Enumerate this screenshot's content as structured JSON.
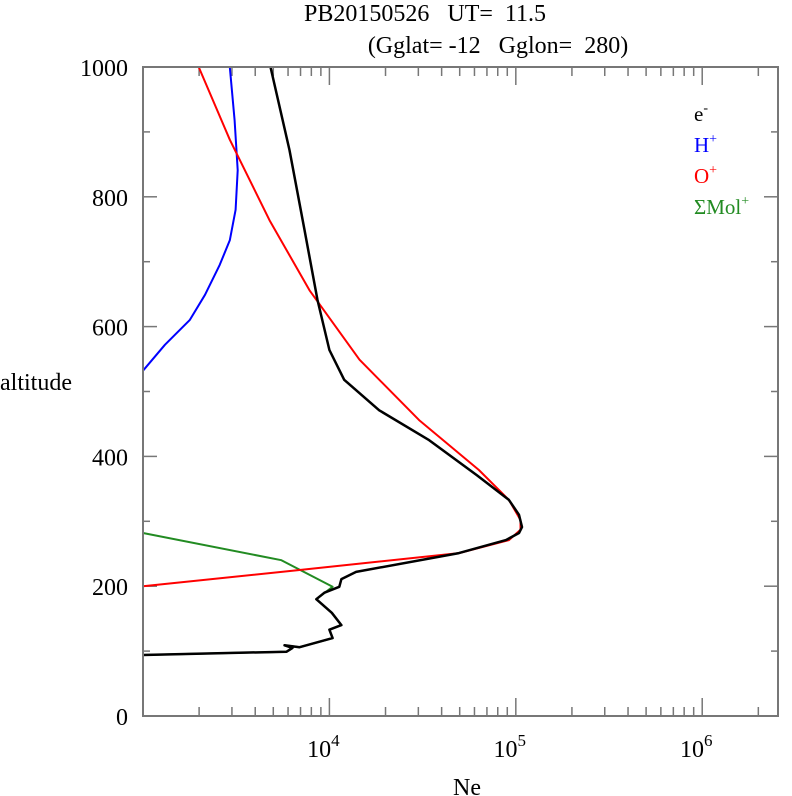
{
  "chart_data": {
    "type": "line",
    "title_line1": "PB20150526   UT=  11.5",
    "title_line2": "(Gglat= -12   Gglon=  280)",
    "xlabel": "Ne",
    "ylabel": "altitude",
    "xscale": "log",
    "xlim": [
      1000,
      2550000
    ],
    "ylim": [
      0,
      1000
    ],
    "x_ticks": [
      {
        "value": 10000,
        "base": "10",
        "exp": "4"
      },
      {
        "value": 100000,
        "base": "10",
        "exp": "5"
      },
      {
        "value": 1000000,
        "base": "10",
        "exp": "6"
      }
    ],
    "y_ticks": [
      0,
      200,
      400,
      600,
      800,
      1000
    ],
    "legend_position": "top-right",
    "series": [
      {
        "name": "e",
        "sup": "-",
        "color": "#000000",
        "points": [
          [
            4830,
            1000
          ],
          [
            6110,
            872
          ],
          [
            7350,
            749
          ],
          [
            8630,
            641
          ],
          [
            10000,
            564
          ],
          [
            12000,
            518
          ],
          [
            18500,
            471
          ],
          [
            34300,
            425
          ],
          [
            61800,
            371
          ],
          [
            91800,
            333
          ],
          [
            104000,
            310
          ],
          [
            108000,
            291
          ],
          [
            104000,
            282
          ],
          [
            88500,
            271
          ],
          [
            49500,
            251
          ],
          [
            13900,
            222
          ],
          [
            11600,
            211
          ],
          [
            11300,
            199
          ],
          [
            9400,
            190
          ],
          [
            8510,
            180
          ],
          [
            10300,
            159
          ],
          [
            11600,
            140
          ],
          [
            10000,
            133
          ],
          [
            10400,
            120
          ],
          [
            6920,
            106
          ],
          [
            5740,
            109
          ],
          [
            6340,
            105
          ],
          [
            5890,
            99
          ],
          [
            1000,
            94
          ]
        ]
      },
      {
        "name": "H",
        "sup": "+",
        "color": "#0000ff",
        "points": [
          [
            2920,
            1000
          ],
          [
            3100,
            918
          ],
          [
            3220,
            841
          ],
          [
            3140,
            780
          ],
          [
            2920,
            733
          ],
          [
            2580,
            695
          ],
          [
            2150,
            649
          ],
          [
            1780,
            610
          ],
          [
            1310,
            572
          ],
          [
            1000,
            532
          ]
        ]
      },
      {
        "name": "O",
        "sup": "+",
        "color": "#ff0000",
        "points": [
          [
            1990,
            1000
          ],
          [
            2920,
            888
          ],
          [
            4770,
            764
          ],
          [
            7820,
            656
          ],
          [
            14500,
            549
          ],
          [
            30300,
            456
          ],
          [
            63400,
            379
          ],
          [
            91800,
            333
          ],
          [
            106000,
            302
          ],
          [
            106000,
            287
          ],
          [
            91800,
            271
          ],
          [
            49500,
            251
          ],
          [
            6920,
            225
          ],
          [
            1000,
            200
          ]
        ]
      },
      {
        "name": "ΣMol",
        "sup": "+",
        "color": "#228b22",
        "points": [
          [
            1000,
            282
          ],
          [
            5530,
            240
          ],
          [
            10400,
            199
          ],
          [
            8510,
            180
          ],
          [
            10300,
            159
          ],
          [
            11600,
            140
          ],
          [
            10000,
            133
          ],
          [
            10400,
            120
          ],
          [
            6920,
            106
          ],
          [
            5740,
            109
          ],
          [
            6340,
            105
          ],
          [
            5890,
            99
          ],
          [
            1000,
            94
          ]
        ]
      }
    ]
  }
}
